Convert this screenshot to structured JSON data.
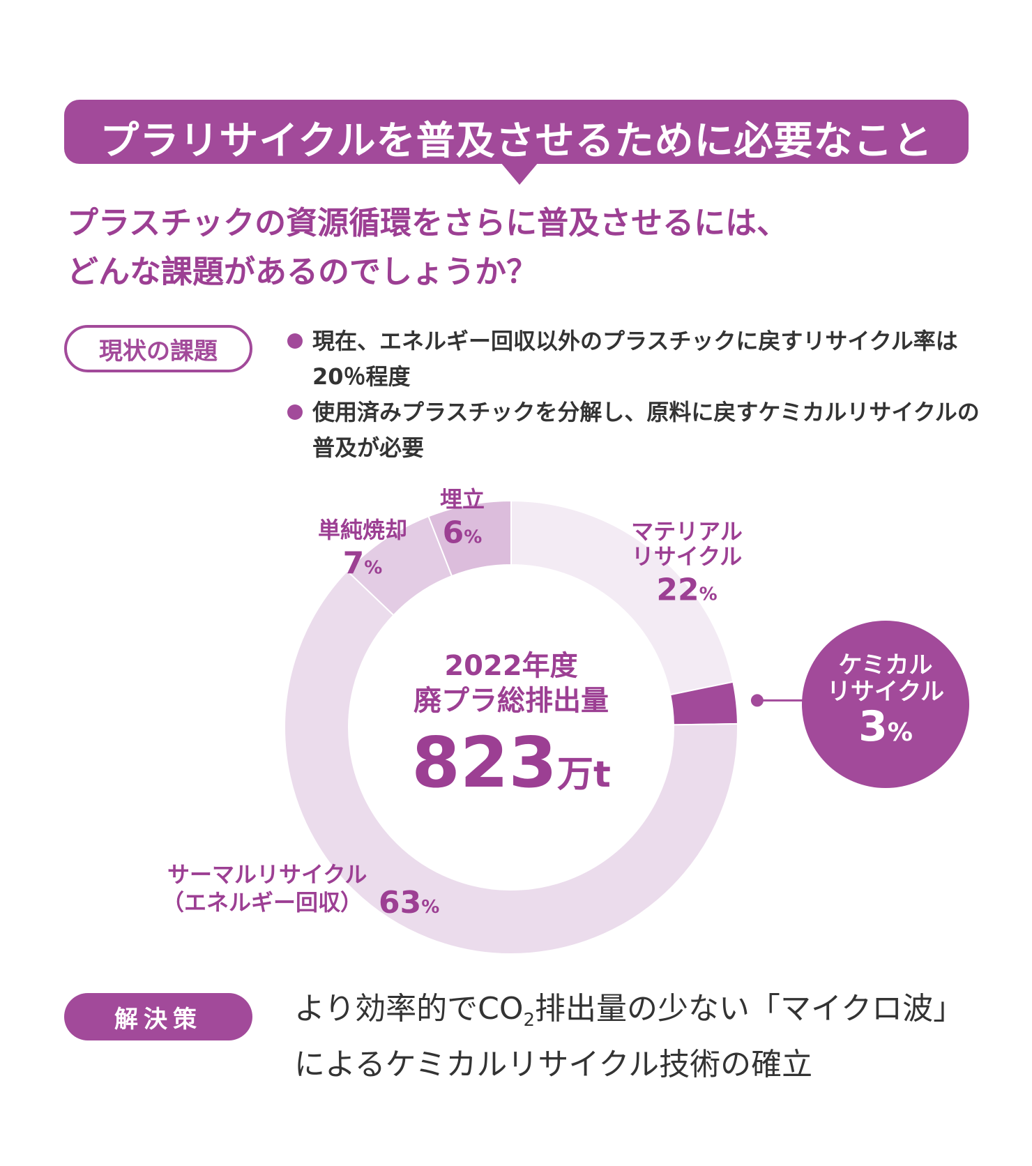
{
  "header": {
    "title": "プラリサイクルを普及させるために必要なこと",
    "question_line1": "プラスチックの資源循環をさらに普及させるには、",
    "question_line2": "どんな課題があるのでしょうか？"
  },
  "issues": {
    "label": "現状の課題",
    "items": [
      "現在、エネルギー回収以外のプラスチックに戻すリサイクル率は20％程度",
      "使用済みプラスチックを分解し、原料に戻すケミカルリサイクルの普及が必要"
    ]
  },
  "chart_data": {
    "type": "pie",
    "center": {
      "line1": "2022年度",
      "line2": "廃プラ総排出量",
      "value": "823",
      "unit": "万t"
    },
    "slices": [
      {
        "label_lines": [
          "マテリアル",
          "リサイクル"
        ],
        "value": 22,
        "unit": "%",
        "color": "#f3ebf4"
      },
      {
        "label_lines": [
          "ケミカル",
          "リサイクル"
        ],
        "value": 3,
        "unit": "%",
        "color": "#a24a9a"
      },
      {
        "label_lines": [
          "サーマルリサイクル",
          "（エネルギー回収）"
        ],
        "value": 63,
        "unit": "%",
        "color": "#ebdcec"
      },
      {
        "label_lines": [
          "単純焼却"
        ],
        "value": 7,
        "unit": "%",
        "color": "#e3cce4"
      },
      {
        "label_lines": [
          "埋立"
        ],
        "value": 6,
        "unit": "%",
        "color": "#dcbddc"
      }
    ]
  },
  "solution": {
    "label": "解決策",
    "text_before_sub": "より効率的でCO",
    "sub": "2",
    "text_after_sub": "排出量の少ない「マイクロ波」",
    "line2": "によるケミカルリサイクル技術の確立"
  }
}
